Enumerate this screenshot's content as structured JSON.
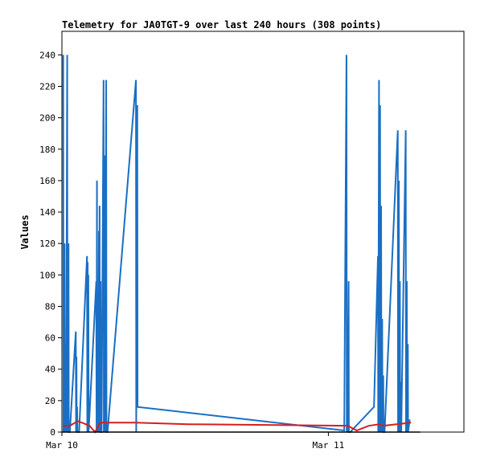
{
  "chart_data": {
    "type": "line",
    "title": "Telemetry for JA0TGT-9 over last 240 hours (308 points)",
    "xlabel": "",
    "ylabel": "Values",
    "ylim": [
      0,
      255
    ],
    "yticks": [
      0,
      20,
      40,
      60,
      80,
      100,
      120,
      140,
      160,
      180,
      200,
      220,
      240
    ],
    "xlim_hours": [
      0,
      30.4
    ],
    "x_unit": "hours since Mar 10 00:00",
    "xticks": [
      {
        "label": "Mar 10",
        "hours": 0
      },
      {
        "label": "Mar 11",
        "hours": 20.15
      }
    ],
    "grid": false,
    "legend": "none",
    "series": [
      {
        "color": "#1a6fc4",
        "x": [
          0.1,
          0.12,
          0.2,
          0.22,
          0.3,
          0.32,
          0.4,
          0.42,
          0.5,
          0.52,
          0.6,
          1.05,
          1.07,
          1.1,
          1.12,
          1.15,
          1.17,
          1.3,
          1.9,
          1.92,
          1.95,
          1.97,
          2.0,
          2.02,
          2.6,
          2.62,
          2.65,
          2.67,
          2.72,
          2.74,
          2.8,
          2.82,
          2.85,
          2.87,
          2.92,
          2.94,
          3.0,
          3.15,
          3.17,
          3.25,
          3.27,
          3.35,
          3.37,
          3.45,
          5.6,
          5.62,
          5.7,
          5.72,
          21.35,
          21.52,
          21.54,
          21.58,
          21.6,
          21.68,
          21.7,
          21.8,
          23.6,
          23.9,
          23.92,
          23.98,
          24.0,
          24.06,
          24.08,
          24.14,
          24.16,
          24.22,
          24.24,
          24.3,
          24.32,
          24.4,
          25.4,
          25.42,
          25.48,
          25.5,
          25.56,
          25.58,
          25.64,
          25.66,
          26.0,
          26.02,
          26.08,
          26.1,
          26.16,
          26.18,
          26.3
        ],
        "y": [
          240,
          0,
          120,
          0,
          56,
          0,
          240,
          0,
          120,
          0,
          0,
          64,
          0,
          48,
          0,
          16,
          0,
          0,
          112,
          0,
          108,
          0,
          100,
          0,
          96,
          0,
          160,
          0,
          80,
          0,
          128,
          0,
          144,
          0,
          96,
          0,
          0,
          224,
          0,
          176,
          0,
          224,
          0,
          0,
          224,
          0,
          208,
          16,
          1,
          240,
          0,
          48,
          0,
          96,
          0,
          0,
          16,
          112,
          0,
          224,
          0,
          208,
          0,
          144,
          0,
          72,
          0,
          36,
          0,
          0,
          192,
          0,
          160,
          0,
          96,
          0,
          32,
          0,
          192,
          0,
          96,
          0,
          56,
          0,
          8
        ]
      },
      {
        "color": "#d42020",
        "x": [
          0.1,
          0.6,
          1.2,
          1.8,
          2.1,
          2.5,
          2.9,
          3.1,
          5.6,
          9.5,
          21.6,
          22.3,
          23.2,
          24.0,
          24.3,
          25.3,
          26.4
        ],
        "y": [
          4,
          4,
          7,
          5,
          4,
          0,
          6,
          6,
          6,
          5,
          4,
          1,
          4,
          5,
          4,
          5,
          6
        ]
      },
      {
        "color": "#000000",
        "x": [
          0,
          27.1
        ],
        "y": [
          0,
          0
        ]
      }
    ]
  }
}
